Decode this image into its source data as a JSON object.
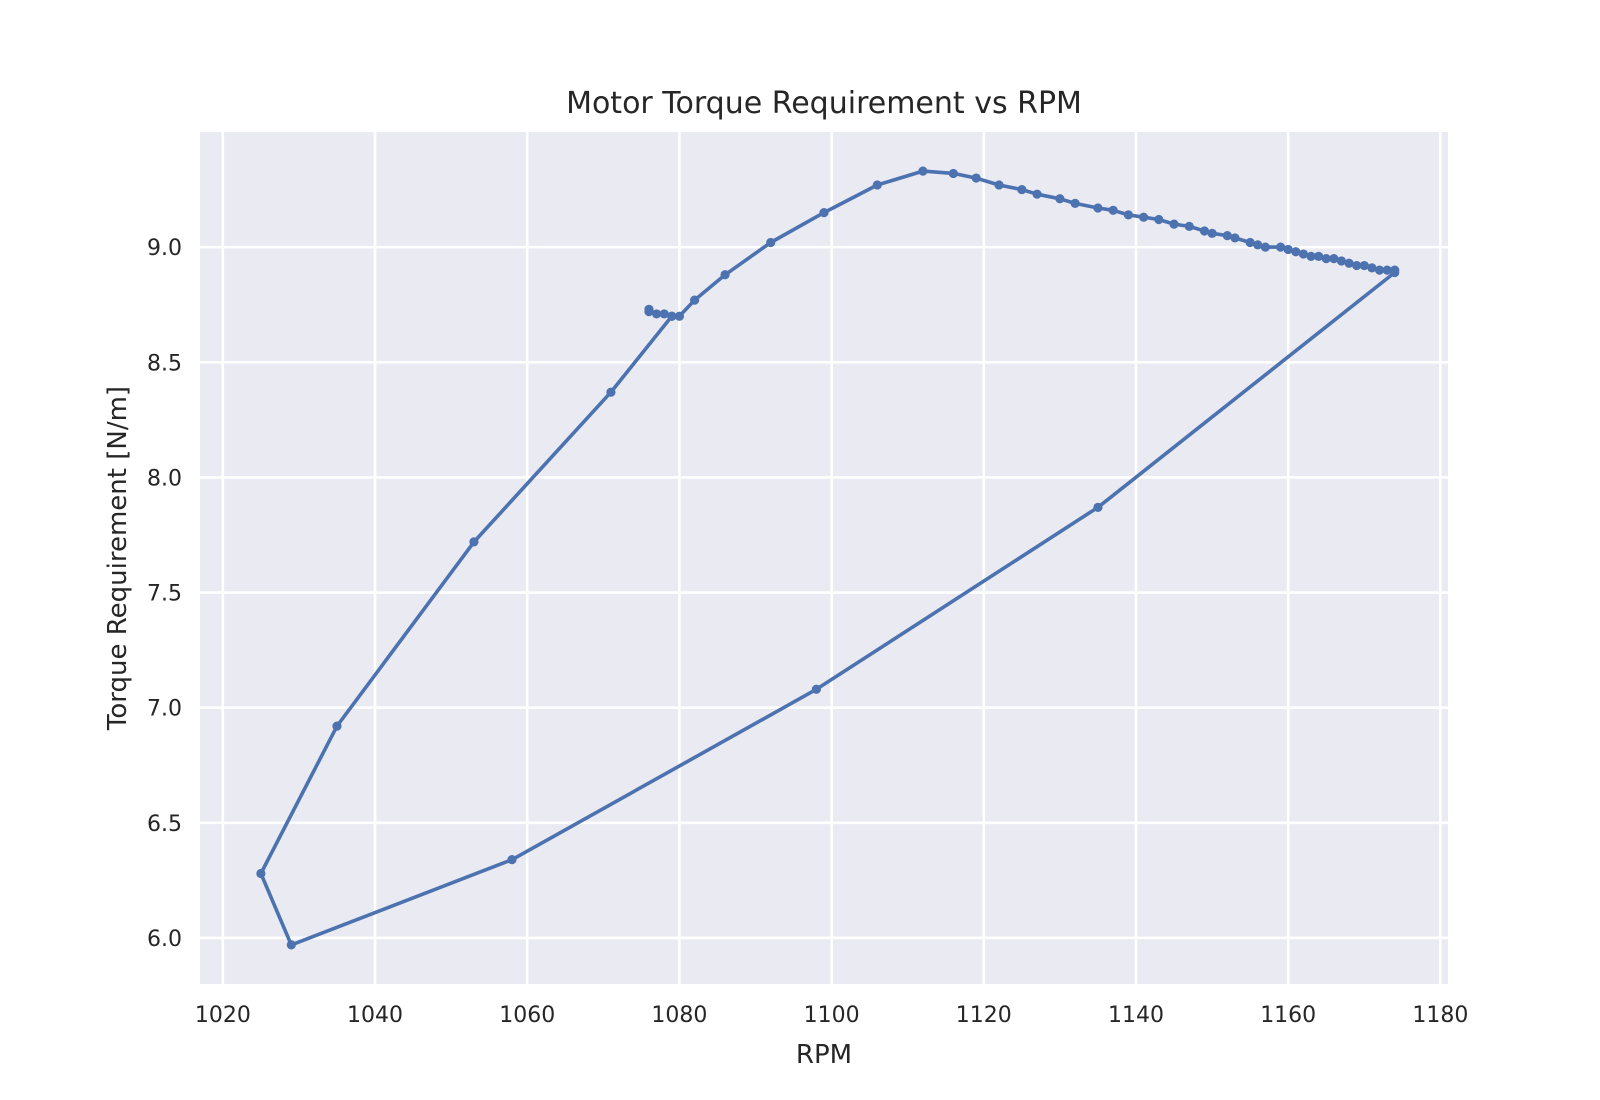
{
  "chart_data": {
    "type": "line",
    "title": "Motor Torque Requirement vs RPM",
    "xlabel": "RPM",
    "ylabel": "Torque Requirement [N/m]",
    "xlim": [
      1017,
      1181
    ],
    "ylim": [
      5.8,
      9.5
    ],
    "xticks": [
      1020,
      1040,
      1060,
      1080,
      1100,
      1120,
      1140,
      1160,
      1180
    ],
    "yticks": [
      6.0,
      6.5,
      7.0,
      7.5,
      8.0,
      8.5,
      9.0
    ],
    "xtick_labels": [
      "1020",
      "1040",
      "1060",
      "1080",
      "1100",
      "1120",
      "1140",
      "1160",
      "1180"
    ],
    "ytick_labels": [
      "6.0",
      "6.5",
      "7.0",
      "7.5",
      "8.0",
      "8.5",
      "9.0"
    ],
    "grid": true,
    "background_color": "#eaeaf2",
    "series": [
      {
        "color": "#4c72b0",
        "marker": "circle",
        "x": [
          1076,
          1076,
          1077,
          1078,
          1079,
          1080,
          1082,
          1086,
          1092,
          1099,
          1106,
          1112,
          1116,
          1119,
          1122,
          1125,
          1127,
          1130,
          1132,
          1135,
          1137,
          1139,
          1141,
          1143,
          1145,
          1147,
          1149,
          1150,
          1152,
          1153,
          1155,
          1156,
          1157,
          1159,
          1160,
          1161,
          1162,
          1163,
          1164,
          1165,
          1166,
          1167,
          1168,
          1169,
          1170,
          1171,
          1172,
          1173,
          1174,
          1174,
          1135,
          1098,
          1058,
          1029,
          1025,
          1035,
          1053,
          1071,
          1079
        ],
        "y": [
          8.73,
          8.72,
          8.71,
          8.71,
          8.7,
          8.7,
          8.77,
          8.88,
          9.02,
          9.15,
          9.27,
          9.33,
          9.32,
          9.3,
          9.27,
          9.25,
          9.23,
          9.21,
          9.19,
          9.17,
          9.16,
          9.14,
          9.13,
          9.12,
          9.1,
          9.09,
          9.07,
          9.06,
          9.05,
          9.04,
          9.02,
          9.01,
          9.0,
          9.0,
          8.99,
          8.98,
          8.97,
          8.96,
          8.96,
          8.95,
          8.95,
          8.94,
          8.93,
          8.92,
          8.92,
          8.91,
          8.9,
          8.9,
          8.9,
          8.89,
          7.87,
          7.08,
          6.34,
          5.97,
          6.28,
          6.92,
          7.72,
          8.37,
          8.7
        ]
      }
    ]
  }
}
